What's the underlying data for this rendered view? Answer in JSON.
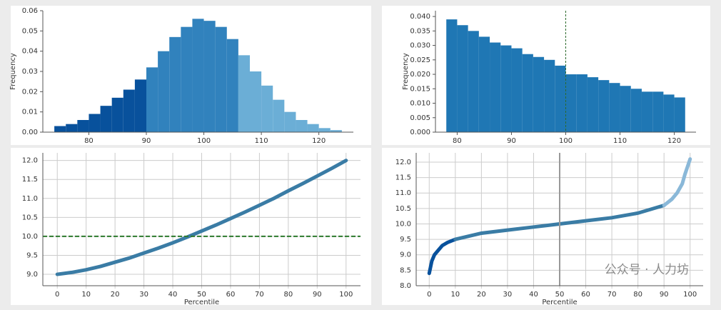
{
  "chart_data": [
    {
      "type": "histogram",
      "ylabel": "Frequency",
      "bins": [
        74,
        76,
        78,
        80,
        82,
        84,
        86,
        88,
        90,
        92,
        94,
        96,
        98,
        100,
        102,
        104,
        106,
        108,
        110,
        112,
        114,
        116,
        118,
        120,
        122,
        124
      ],
      "values": [
        0.003,
        0.004,
        0.006,
        0.009,
        0.013,
        0.017,
        0.021,
        0.026,
        0.032,
        0.04,
        0.047,
        0.052,
        0.056,
        0.055,
        0.052,
        0.046,
        0.038,
        0.03,
        0.023,
        0.016,
        0.01,
        0.006,
        0.004,
        0.002,
        0.001
      ],
      "colors": [
        "#08519c",
        "#08519c",
        "#08519c",
        "#08519c",
        "#08519c",
        "#08519c",
        "#08519c",
        "#08519c",
        "#3182bd",
        "#3182bd",
        "#3182bd",
        "#3182bd",
        "#3182bd",
        "#3182bd",
        "#3182bd",
        "#3182bd",
        "#6baed6",
        "#6baed6",
        "#6baed6",
        "#6baed6",
        "#6baed6",
        "#6baed6",
        "#6baed6",
        "#6baed6",
        "#6baed6"
      ],
      "xlim": [
        72,
        126
      ],
      "xticks": [
        80,
        90,
        100,
        110,
        120
      ],
      "ylim": [
        0,
        0.06
      ],
      "yticks": [
        {
          "value": 0,
          "label": "0.00"
        },
        0.01,
        0.02,
        0.03,
        0.04,
        0.05,
        0.06
      ]
    },
    {
      "type": "histogram",
      "ylabel": "Frequency",
      "bins": [
        78,
        80,
        82,
        84,
        86,
        88,
        90,
        92,
        94,
        96,
        98,
        100,
        102,
        104,
        106,
        108,
        110,
        112,
        114,
        116,
        118,
        120,
        122
      ],
      "values": [
        0.039,
        0.037,
        0.035,
        0.033,
        0.031,
        0.03,
        0.029,
        0.027,
        0.026,
        0.025,
        0.023,
        0.02,
        0.02,
        0.019,
        0.018,
        0.017,
        0.016,
        0.015,
        0.014,
        0.014,
        0.013,
        0.012
      ],
      "color": "#1f77b4",
      "vline": 100,
      "xlim": [
        76,
        124
      ],
      "xticks": [
        80,
        90,
        100,
        110,
        120
      ],
      "ylim": [
        0,
        0.042
      ],
      "yticks": [
        {
          "value": 0,
          "label": "0.000"
        },
        0.005,
        {
          "value": 0.01,
          "label": "0.010"
        },
        0.015,
        {
          "value": 0.02,
          "label": "0.020"
        },
        0.025,
        {
          "value": 0.03,
          "label": "0.030"
        },
        0.035,
        {
          "value": 0.04,
          "label": "0.040"
        }
      ]
    },
    {
      "type": "line",
      "xlabel": "Percentile",
      "hline": 10,
      "grid": true,
      "series": [
        {
          "color": "#3a7ca5",
          "x": [
            0,
            5,
            10,
            15,
            20,
            25,
            30,
            35,
            40,
            45,
            50,
            55,
            60,
            65,
            70,
            75,
            80,
            85,
            90,
            95,
            100
          ],
          "values": [
            9.0,
            9.05,
            9.12,
            9.21,
            9.32,
            9.43,
            9.56,
            9.69,
            9.83,
            9.98,
            10.14,
            10.3,
            10.47,
            10.64,
            10.82,
            11.0,
            11.2,
            11.39,
            11.59,
            11.79,
            12.0
          ]
        }
      ],
      "xlim": [
        -5,
        105
      ],
      "xticks": [
        0,
        10,
        20,
        30,
        40,
        50,
        60,
        70,
        80,
        90,
        100
      ],
      "ylim": [
        8.7,
        12.2
      ],
      "yticks": [
        {
          "value": 9,
          "label": "9.0"
        },
        9.5,
        {
          "value": 10,
          "label": "10.0"
        },
        10.5,
        {
          "value": 11,
          "label": "11.0"
        },
        11.5,
        {
          "value": 12,
          "label": "12.0"
        }
      ]
    },
    {
      "type": "line",
      "xlabel": "Percentile",
      "vline": 50,
      "grid": true,
      "annotation": "公众号 · 人力坊",
      "series": [
        {
          "color": "#08519c",
          "x": [
            0,
            1,
            2,
            3,
            5,
            7,
            10
          ],
          "values": [
            8.4,
            8.8,
            9.0,
            9.1,
            9.3,
            9.4,
            9.5
          ]
        },
        {
          "color": "#3a7ca5",
          "x": [
            10,
            20,
            30,
            40,
            50,
            60,
            70,
            80,
            90
          ],
          "values": [
            9.5,
            9.7,
            9.8,
            9.9,
            10.0,
            10.1,
            10.2,
            10.35,
            10.6
          ]
        },
        {
          "color": "#8ab8d8",
          "x": [
            90,
            93,
            95,
            97,
            98,
            99,
            100
          ],
          "values": [
            10.6,
            10.8,
            11.0,
            11.3,
            11.6,
            11.85,
            12.1
          ]
        }
      ],
      "xlim": [
        -5,
        105
      ],
      "xticks": [
        0,
        10,
        20,
        30,
        40,
        50,
        60,
        70,
        80,
        90,
        100
      ],
      "ylim": [
        8.0,
        12.3
      ],
      "yticks": [
        {
          "value": 8,
          "label": "8.0"
        },
        8.5,
        {
          "value": 9,
          "label": "9.0"
        },
        9.5,
        {
          "value": 10,
          "label": "10.0"
        },
        10.5,
        {
          "value": 11,
          "label": "11.0"
        },
        11.5,
        {
          "value": 12,
          "label": "12.0"
        }
      ]
    }
  ]
}
